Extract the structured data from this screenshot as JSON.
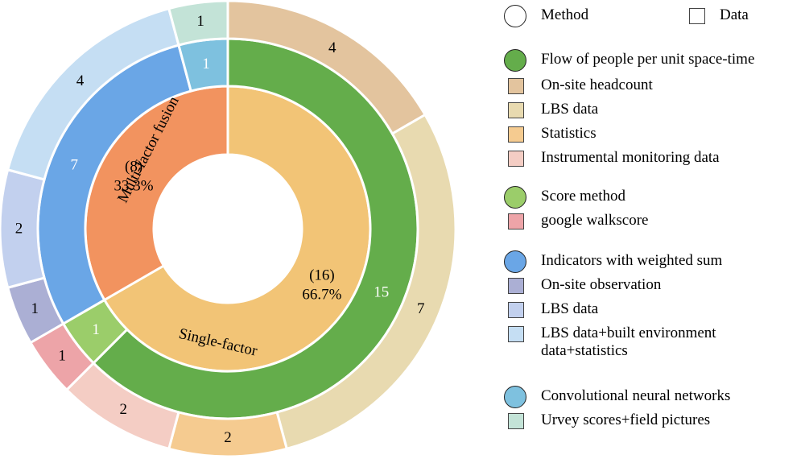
{
  "chart_data": {
    "type": "nested-pie",
    "rings": [
      {
        "level": "inner",
        "label_style": "percent",
        "slices": [
          {
            "name": "Single-factor",
            "count": 16,
            "percent": "66.7%",
            "count_label": "(16)",
            "color": "#F2C476"
          },
          {
            "name": "Multi-factor fusion",
            "count": 8,
            "percent": "33.3%",
            "count_label": "(8)",
            "color": "#F2935F"
          }
        ]
      },
      {
        "level": "middle",
        "slices": [
          {
            "legend": "Flow of people per unit space-time",
            "value": 15,
            "label": "15",
            "color": "#64AD4B"
          },
          {
            "legend": "Score method",
            "value": 1,
            "label": "1",
            "color": "#9BCD6A"
          },
          {
            "legend": "Indicators with weighted sum",
            "value": 7,
            "label": "7",
            "color": "#6AA6E6"
          },
          {
            "legend": "Convolutional neural networks",
            "value": 1,
            "label": "1",
            "color": "#7EC1DF"
          }
        ]
      },
      {
        "level": "outer",
        "slices": [
          {
            "legend": "On-site headcount",
            "value": 4,
            "label": "4",
            "color": "#E3C49E"
          },
          {
            "legend": "LBS data",
            "value": 7,
            "label": "7",
            "color": "#E8DAB0"
          },
          {
            "legend": "Statistics",
            "value": 2,
            "label": "2",
            "color": "#F5CB90"
          },
          {
            "legend": "Instrumental monitoring data",
            "value": 2,
            "label": "2",
            "color": "#F4CDC4"
          },
          {
            "legend": "google walkscore",
            "value": 1,
            "label": "1",
            "color": "#EDA4A8"
          },
          {
            "legend": "On-site observation",
            "value": 1,
            "label": "1",
            "color": "#ABAFD4"
          },
          {
            "legend": "LBS data",
            "value": 2,
            "label": "2",
            "color": "#C2D0EE"
          },
          {
            "legend": "LBS data+built environment data+statistics",
            "value": 4,
            "label": "4",
            "color": "#C5DEF3"
          },
          {
            "legend": "Urvey scores+field pictures",
            "value": 1,
            "label": "1",
            "color": "#C3E3D7"
          }
        ]
      }
    ],
    "legend_placement": "right"
  },
  "legend": {
    "header": {
      "method": "Method",
      "data": "Data"
    },
    "items": [
      {
        "kind": "circle",
        "label": "Flow of people per unit space-time",
        "color": "#64AD4B"
      },
      {
        "kind": "square",
        "label": "On-site headcount",
        "color": "#E3C49E"
      },
      {
        "kind": "square",
        "label": "LBS data",
        "color": "#E8DAB0"
      },
      {
        "kind": "square",
        "label": "Statistics",
        "color": "#F5CB90"
      },
      {
        "kind": "square",
        "label": "Instrumental monitoring data",
        "color": "#F4CDC4"
      },
      {
        "kind": "circle",
        "label": "Score method",
        "color": "#9BCD6A"
      },
      {
        "kind": "square",
        "label": "google walkscore",
        "color": "#EDA4A8"
      },
      {
        "kind": "circle",
        "label": "Indicators with weighted sum",
        "color": "#6AA6E6"
      },
      {
        "kind": "square",
        "label": "On-site observation",
        "color": "#ABAFD4"
      },
      {
        "kind": "square",
        "label": "LBS data",
        "color": "#C2D0EE"
      },
      {
        "kind": "square",
        "label": "LBS data+built environment data+statistics",
        "color": "#C5DEF3"
      },
      {
        "kind": "circle",
        "label": "Convolutional neural networks",
        "color": "#7EC1DF"
      },
      {
        "kind": "square",
        "label": "Urvey scores+field pictures",
        "color": "#C3E3D7"
      }
    ]
  }
}
